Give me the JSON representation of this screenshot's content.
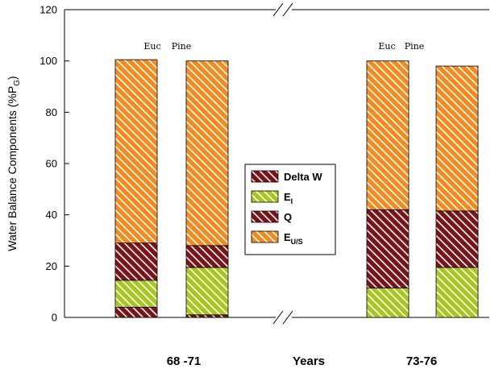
{
  "chart_data": {
    "type": "bar",
    "stacked": true,
    "ylabel_parts": {
      "main": "Water Balance Components (%P",
      "sub": "G",
      "end": ")"
    },
    "xlabel": "Years",
    "ylim": [
      0,
      120
    ],
    "yticks": [
      0,
      20,
      40,
      60,
      80,
      100,
      120
    ],
    "groups": [
      "68 -71",
      "73-76"
    ],
    "bars": [
      {
        "group": "68 -71",
        "label": "",
        "values": {
          "Delta W": 4,
          "E_I": 10.5,
          "Q": 14.5,
          "E_U/S": 71.5
        }
      },
      {
        "group": "68 -71",
        "label": "",
        "values": {
          "Delta W": 1,
          "E_I": 18.5,
          "Q": 8.5,
          "E_U/S": 72
        }
      },
      {
        "group": "73-76",
        "label": "Euc",
        "values": {
          "Delta W": 0,
          "E_I": 11.5,
          "Q": 30.5,
          "E_U/S": 58
        }
      },
      {
        "group": "73-76",
        "label": "Pine",
        "values": {
          "Delta W": 0,
          "E_I": 19.5,
          "Q": 22,
          "E_U/S": 56.5
        }
      }
    ],
    "top_labels": [
      "Euc",
      "Pine",
      "Euc",
      "Pine"
    ],
    "series": [
      {
        "key": "Delta W",
        "name": "Delta W",
        "name_main": "Delta W",
        "name_sub": "",
        "color": "#7a1418",
        "stripe": "#ffffff"
      },
      {
        "key": "E_I",
        "name": "E_I",
        "name_main": "E",
        "name_sub": "I",
        "color": "#a8c620",
        "stripe": "#ffffff"
      },
      {
        "key": "Q",
        "name": "Q",
        "name_main": "Q",
        "name_sub": "",
        "color": "#7a1418",
        "stripe": "#ffffff"
      },
      {
        "key": "E_U/S",
        "name": "E_U/S",
        "name_main": "E",
        "name_sub": "U/S",
        "color": "#f28a1e",
        "stripe": "#ffffff"
      }
    ],
    "legend_position": "center",
    "grid": false,
    "axis_break": true
  }
}
